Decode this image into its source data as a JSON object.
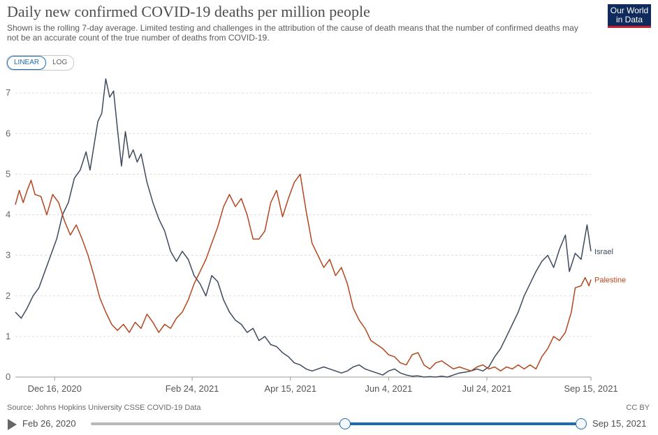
{
  "header": {
    "title": "Daily new confirmed COVID-19 deaths per million people",
    "subtitle": "Shown is the rolling 7-day average. Limited testing and challenges in the attribution of the cause of death means that the number of confirmed deaths may not be an accurate count of the true number of deaths from COVID-19.",
    "logo_line1": "Our World",
    "logo_line2": "in Data"
  },
  "scale_toggle": {
    "linear_label": "LINEAR",
    "log_label": "LOG",
    "selected": "LINEAR"
  },
  "footer": {
    "source": "Source: Johns Hopkins University CSSE COVID-19 Data",
    "license": "CC BY"
  },
  "timeline": {
    "start_label": "Feb 26, 2020",
    "end_label": "Sep 15, 2021",
    "range_start_fraction": 0.518,
    "range_end_fraction": 1.0
  },
  "colors": {
    "israel": "#3d4a5c",
    "palestine": "#b4461f",
    "grid": "#dddddd",
    "accent": "#1d6ab5"
  },
  "chart_data": {
    "type": "line",
    "title": "Daily new confirmed COVID-19 deaths per million people",
    "xlabel": "",
    "ylabel": "",
    "x_axis": {
      "type": "date",
      "start": "2020-11-26",
      "end": "2021-09-15"
    },
    "ylim": [
      0,
      7.4
    ],
    "y_ticks": [
      0,
      1,
      2,
      3,
      4,
      5,
      6,
      7
    ],
    "x_ticks": [
      {
        "date": "2020-12-16",
        "label": "Dec 16, 2020"
      },
      {
        "date": "2021-02-24",
        "label": "Feb 24, 2021"
      },
      {
        "date": "2021-04-15",
        "label": "Apr 15, 2021"
      },
      {
        "date": "2021-06-04",
        "label": "Jun 4, 2021"
      },
      {
        "date": "2021-07-24",
        "label": "Jul 24, 2021"
      },
      {
        "date": "2021-09-15",
        "label": "Sep 15, 2021"
      }
    ],
    "grid": "horizontal-dashed",
    "legend": "end-of-line-labels",
    "series": [
      {
        "name": "Israel",
        "color": "#3d4a5c",
        "points": [
          [
            "2020-11-26",
            1.6
          ],
          [
            "2020-11-29",
            1.45
          ],
          [
            "2020-12-02",
            1.7
          ],
          [
            "2020-12-05",
            2.0
          ],
          [
            "2020-12-08",
            2.2
          ],
          [
            "2020-12-11",
            2.6
          ],
          [
            "2020-12-14",
            3.0
          ],
          [
            "2020-12-17",
            3.4
          ],
          [
            "2020-12-20",
            4.0
          ],
          [
            "2020-12-23",
            4.3
          ],
          [
            "2020-12-26",
            4.9
          ],
          [
            "2020-12-29",
            5.1
          ],
          [
            "2021-01-01",
            5.55
          ],
          [
            "2021-01-03",
            5.1
          ],
          [
            "2021-01-05",
            5.7
          ],
          [
            "2021-01-07",
            6.3
          ],
          [
            "2021-01-09",
            6.5
          ],
          [
            "2021-01-11",
            7.35
          ],
          [
            "2021-01-13",
            6.9
          ],
          [
            "2021-01-15",
            7.05
          ],
          [
            "2021-01-17",
            6.1
          ],
          [
            "2021-01-19",
            5.2
          ],
          [
            "2021-01-21",
            6.05
          ],
          [
            "2021-01-23",
            5.4
          ],
          [
            "2021-01-25",
            5.6
          ],
          [
            "2021-01-27",
            5.3
          ],
          [
            "2021-01-29",
            5.5
          ],
          [
            "2021-02-01",
            4.8
          ],
          [
            "2021-02-04",
            4.3
          ],
          [
            "2021-02-07",
            3.9
          ],
          [
            "2021-02-10",
            3.6
          ],
          [
            "2021-02-13",
            3.1
          ],
          [
            "2021-02-16",
            2.85
          ],
          [
            "2021-02-19",
            3.1
          ],
          [
            "2021-02-22",
            2.9
          ],
          [
            "2021-02-25",
            2.5
          ],
          [
            "2021-02-28",
            2.3
          ],
          [
            "2021-03-03",
            2.0
          ],
          [
            "2021-03-06",
            2.5
          ],
          [
            "2021-03-09",
            2.35
          ],
          [
            "2021-03-12",
            1.9
          ],
          [
            "2021-03-15",
            1.6
          ],
          [
            "2021-03-18",
            1.4
          ],
          [
            "2021-03-21",
            1.3
          ],
          [
            "2021-03-24",
            1.1
          ],
          [
            "2021-03-27",
            1.2
          ],
          [
            "2021-03-30",
            0.9
          ],
          [
            "2021-04-02",
            1.0
          ],
          [
            "2021-04-05",
            0.8
          ],
          [
            "2021-04-08",
            0.75
          ],
          [
            "2021-04-11",
            0.6
          ],
          [
            "2021-04-14",
            0.5
          ],
          [
            "2021-04-17",
            0.35
          ],
          [
            "2021-04-20",
            0.3
          ],
          [
            "2021-04-23",
            0.2
          ],
          [
            "2021-04-26",
            0.15
          ],
          [
            "2021-04-29",
            0.2
          ],
          [
            "2021-05-02",
            0.25
          ],
          [
            "2021-05-05",
            0.2
          ],
          [
            "2021-05-08",
            0.15
          ],
          [
            "2021-05-11",
            0.1
          ],
          [
            "2021-05-14",
            0.15
          ],
          [
            "2021-05-17",
            0.25
          ],
          [
            "2021-05-20",
            0.3
          ],
          [
            "2021-05-23",
            0.2
          ],
          [
            "2021-05-26",
            0.15
          ],
          [
            "2021-05-29",
            0.1
          ],
          [
            "2021-06-01",
            0.05
          ],
          [
            "2021-06-04",
            0.15
          ],
          [
            "2021-06-07",
            0.2
          ],
          [
            "2021-06-10",
            0.1
          ],
          [
            "2021-06-13",
            0.05
          ],
          [
            "2021-06-16",
            0.02
          ],
          [
            "2021-06-19",
            0.03
          ],
          [
            "2021-06-22",
            0.0
          ],
          [
            "2021-06-25",
            0.01
          ],
          [
            "2021-06-28",
            0.0
          ],
          [
            "2021-07-01",
            0.02
          ],
          [
            "2021-07-04",
            0.0
          ],
          [
            "2021-07-07",
            0.05
          ],
          [
            "2021-07-10",
            0.1
          ],
          [
            "2021-07-13",
            0.12
          ],
          [
            "2021-07-16",
            0.15
          ],
          [
            "2021-07-19",
            0.2
          ],
          [
            "2021-07-22",
            0.15
          ],
          [
            "2021-07-25",
            0.25
          ],
          [
            "2021-07-28",
            0.5
          ],
          [
            "2021-07-31",
            0.7
          ],
          [
            "2021-08-03",
            1.0
          ],
          [
            "2021-08-06",
            1.3
          ],
          [
            "2021-08-09",
            1.6
          ],
          [
            "2021-08-12",
            2.0
          ],
          [
            "2021-08-15",
            2.3
          ],
          [
            "2021-08-18",
            2.6
          ],
          [
            "2021-08-21",
            2.85
          ],
          [
            "2021-08-24",
            3.0
          ],
          [
            "2021-08-27",
            2.7
          ],
          [
            "2021-08-30",
            3.15
          ],
          [
            "2021-09-02",
            3.5
          ],
          [
            "2021-09-04",
            2.6
          ],
          [
            "2021-09-07",
            3.05
          ],
          [
            "2021-09-10",
            2.9
          ],
          [
            "2021-09-13",
            3.75
          ],
          [
            "2021-09-15",
            3.1
          ]
        ]
      },
      {
        "name": "Palestine",
        "color": "#b4461f",
        "points": [
          [
            "2020-11-26",
            4.25
          ],
          [
            "2020-11-28",
            4.6
          ],
          [
            "2020-11-30",
            4.3
          ],
          [
            "2020-12-02",
            4.6
          ],
          [
            "2020-12-04",
            4.85
          ],
          [
            "2020-12-06",
            4.5
          ],
          [
            "2020-12-09",
            4.45
          ],
          [
            "2020-12-12",
            4.0
          ],
          [
            "2020-12-15",
            4.5
          ],
          [
            "2020-12-18",
            4.3
          ],
          [
            "2020-12-21",
            3.85
          ],
          [
            "2020-12-24",
            3.5
          ],
          [
            "2020-12-27",
            3.75
          ],
          [
            "2020-12-30",
            3.4
          ],
          [
            "2021-01-02",
            3.0
          ],
          [
            "2021-01-05",
            2.5
          ],
          [
            "2021-01-08",
            1.95
          ],
          [
            "2021-01-11",
            1.6
          ],
          [
            "2021-01-14",
            1.3
          ],
          [
            "2021-01-17",
            1.15
          ],
          [
            "2021-01-20",
            1.3
          ],
          [
            "2021-01-23",
            1.1
          ],
          [
            "2021-01-26",
            1.35
          ],
          [
            "2021-01-29",
            1.2
          ],
          [
            "2021-02-01",
            1.55
          ],
          [
            "2021-02-04",
            1.35
          ],
          [
            "2021-02-07",
            1.1
          ],
          [
            "2021-02-10",
            1.3
          ],
          [
            "2021-02-13",
            1.2
          ],
          [
            "2021-02-16",
            1.45
          ],
          [
            "2021-02-19",
            1.6
          ],
          [
            "2021-02-22",
            1.9
          ],
          [
            "2021-02-25",
            2.3
          ],
          [
            "2021-02-28",
            2.6
          ],
          [
            "2021-03-03",
            2.9
          ],
          [
            "2021-03-06",
            3.3
          ],
          [
            "2021-03-09",
            3.7
          ],
          [
            "2021-03-12",
            4.2
          ],
          [
            "2021-03-15",
            4.5
          ],
          [
            "2021-03-18",
            4.2
          ],
          [
            "2021-03-21",
            4.4
          ],
          [
            "2021-03-24",
            4.0
          ],
          [
            "2021-03-27",
            3.4
          ],
          [
            "2021-03-30",
            3.4
          ],
          [
            "2021-04-02",
            3.6
          ],
          [
            "2021-04-05",
            4.3
          ],
          [
            "2021-04-08",
            4.6
          ],
          [
            "2021-04-11",
            3.95
          ],
          [
            "2021-04-14",
            4.4
          ],
          [
            "2021-04-17",
            4.8
          ],
          [
            "2021-04-20",
            5.0
          ],
          [
            "2021-04-23",
            4.1
          ],
          [
            "2021-04-26",
            3.3
          ],
          [
            "2021-04-29",
            3.0
          ],
          [
            "2021-05-02",
            2.7
          ],
          [
            "2021-05-05",
            2.9
          ],
          [
            "2021-05-08",
            2.5
          ],
          [
            "2021-05-11",
            2.7
          ],
          [
            "2021-05-14",
            2.3
          ],
          [
            "2021-05-17",
            1.7
          ],
          [
            "2021-05-20",
            1.4
          ],
          [
            "2021-05-23",
            1.2
          ],
          [
            "2021-05-26",
            0.9
          ],
          [
            "2021-05-29",
            0.8
          ],
          [
            "2021-06-01",
            0.7
          ],
          [
            "2021-06-04",
            0.55
          ],
          [
            "2021-06-07",
            0.5
          ],
          [
            "2021-06-10",
            0.35
          ],
          [
            "2021-06-13",
            0.3
          ],
          [
            "2021-06-16",
            0.55
          ],
          [
            "2021-06-19",
            0.6
          ],
          [
            "2021-06-22",
            0.3
          ],
          [
            "2021-06-25",
            0.2
          ],
          [
            "2021-06-28",
            0.35
          ],
          [
            "2021-07-01",
            0.4
          ],
          [
            "2021-07-04",
            0.3
          ],
          [
            "2021-07-07",
            0.2
          ],
          [
            "2021-07-10",
            0.25
          ],
          [
            "2021-07-13",
            0.2
          ],
          [
            "2021-07-16",
            0.15
          ],
          [
            "2021-07-19",
            0.25
          ],
          [
            "2021-07-22",
            0.3
          ],
          [
            "2021-07-25",
            0.2
          ],
          [
            "2021-07-28",
            0.25
          ],
          [
            "2021-07-31",
            0.15
          ],
          [
            "2021-08-03",
            0.25
          ],
          [
            "2021-08-06",
            0.2
          ],
          [
            "2021-08-09",
            0.3
          ],
          [
            "2021-08-12",
            0.2
          ],
          [
            "2021-08-15",
            0.3
          ],
          [
            "2021-08-18",
            0.2
          ],
          [
            "2021-08-21",
            0.5
          ],
          [
            "2021-08-24",
            0.7
          ],
          [
            "2021-08-27",
            1.0
          ],
          [
            "2021-08-30",
            0.9
          ],
          [
            "2021-09-02",
            1.1
          ],
          [
            "2021-09-05",
            1.6
          ],
          [
            "2021-09-07",
            2.2
          ],
          [
            "2021-09-10",
            2.25
          ],
          [
            "2021-09-12",
            2.45
          ],
          [
            "2021-09-14",
            2.25
          ],
          [
            "2021-09-15",
            2.4
          ]
        ]
      }
    ]
  }
}
